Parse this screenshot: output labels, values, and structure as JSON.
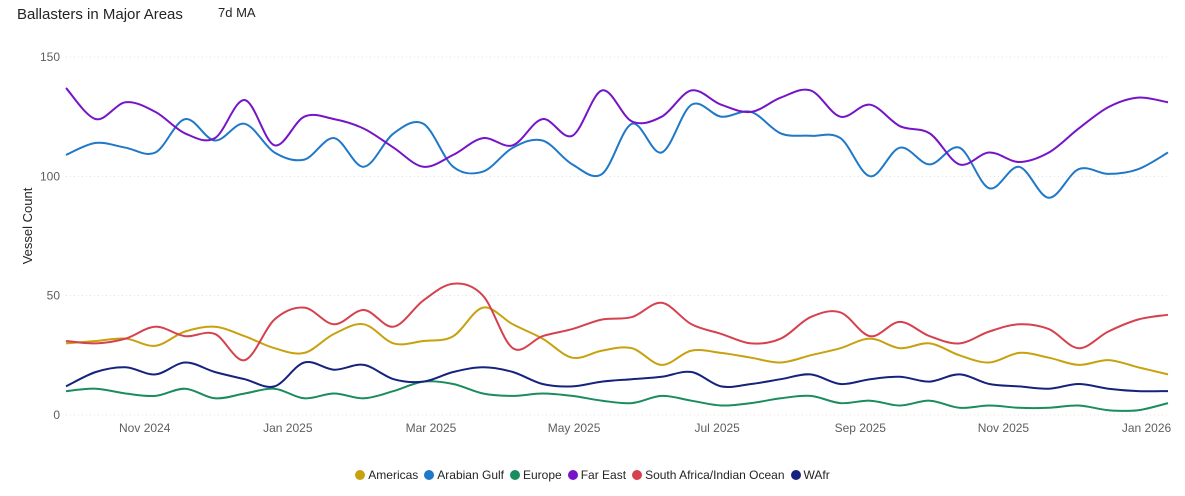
{
  "header": {
    "title": "Ballasters in Major Areas",
    "subtitle": "7d MA"
  },
  "chart_data": {
    "type": "line",
    "title": "Ballasters in Major Areas",
    "subtitle": "7d MA",
    "xlabel": "",
    "ylabel": "Vessel Count",
    "ylim": [
      0,
      150
    ],
    "yticks": [
      0,
      50,
      100,
      150
    ],
    "grid": true,
    "legend_position": "bottom",
    "x_month_index": [
      0,
      0.5,
      1,
      1.5,
      2,
      2.5,
      3,
      3.5,
      4,
      4.5,
      5,
      5.5,
      6,
      6.5,
      7,
      7.5,
      8,
      8.5,
      9,
      9.5,
      10,
      10.5,
      11,
      11.5,
      12,
      12.5,
      13,
      13.5,
      14,
      14.5,
      15,
      15.5,
      16
    ],
    "x_note": "x_month_index counts months from 1 Oct 2024 (0) to 1 Feb 2026 (16); the plotted range is 0.4 to 15.8",
    "xlim": [
      0.4,
      15.8
    ],
    "xticks": [
      {
        "label": "Nov 2024",
        "pos": 1.5
      },
      {
        "label": "Jan 2025",
        "pos": 3.5
      },
      {
        "label": "Mar 2025",
        "pos": 5.5
      },
      {
        "label": "May 2025",
        "pos": 7.5
      },
      {
        "label": "Jul 2025",
        "pos": 9.5
      },
      {
        "label": "Sep 2025",
        "pos": 11.5
      },
      {
        "label": "Nov 2025",
        "pos": 13.5
      },
      {
        "label": "Jan 2026",
        "pos": 15.5
      }
    ],
    "series": [
      {
        "name": "Americas",
        "color": "#C8A10F",
        "values": [
          30,
          31,
          32,
          29,
          35,
          37,
          33,
          28,
          26,
          34,
          38,
          30,
          31,
          33,
          45,
          38,
          32,
          24,
          27,
          28,
          21,
          27,
          26,
          24,
          22,
          25,
          28,
          32,
          28,
          30,
          25,
          22,
          26,
          24,
          21,
          23,
          20,
          17
        ]
      },
      {
        "name": "Arabian Gulf",
        "color": "#1F78C8",
        "values": [
          109,
          114,
          112,
          110,
          124,
          115,
          122,
          110,
          107,
          116,
          104,
          118,
          122,
          104,
          102,
          112,
          115,
          105,
          101,
          122,
          110,
          130,
          125,
          127,
          118,
          117,
          116,
          100,
          112,
          105,
          112,
          95,
          104,
          91,
          103,
          101,
          103,
          110
        ]
      },
      {
        "name": "Europe",
        "color": "#1A8C5E",
        "values": [
          10,
          11,
          9,
          8,
          11,
          7,
          9,
          11,
          7,
          9,
          7,
          10,
          14,
          13,
          9,
          8,
          9,
          8,
          6,
          5,
          8,
          6,
          4,
          5,
          7,
          8,
          5,
          6,
          4,
          6,
          3,
          4,
          3,
          3,
          4,
          2,
          2,
          5
        ]
      },
      {
        "name": "Far East",
        "color": "#7614C8",
        "values": [
          137,
          124,
          131,
          127,
          118,
          116,
          132,
          113,
          125,
          124,
          120,
          112,
          104,
          109,
          116,
          113,
          124,
          117,
          136,
          123,
          125,
          136,
          130,
          127,
          133,
          136,
          125,
          130,
          121,
          118,
          105,
          110,
          106,
          110,
          120,
          129,
          133,
          131
        ]
      },
      {
        "name": "South Africa/Indian Ocean",
        "color": "#D6414E",
        "values": [
          31,
          30,
          32,
          37,
          33,
          34,
          23,
          40,
          45,
          38,
          44,
          37,
          48,
          55,
          50,
          28,
          33,
          36,
          40,
          41,
          47,
          38,
          34,
          30,
          32,
          41,
          43,
          33,
          39,
          33,
          30,
          35,
          38,
          36,
          28,
          35,
          40,
          42
        ]
      },
      {
        "name": "WAfr",
        "color": "#16237E",
        "values": [
          12,
          18,
          20,
          17,
          22,
          18,
          15,
          12,
          22,
          19,
          21,
          15,
          14,
          18,
          20,
          18,
          13,
          12,
          14,
          15,
          16,
          18,
          12,
          13,
          15,
          17,
          13,
          15,
          16,
          14,
          17,
          13,
          12,
          11,
          13,
          11,
          10,
          10
        ]
      }
    ]
  }
}
